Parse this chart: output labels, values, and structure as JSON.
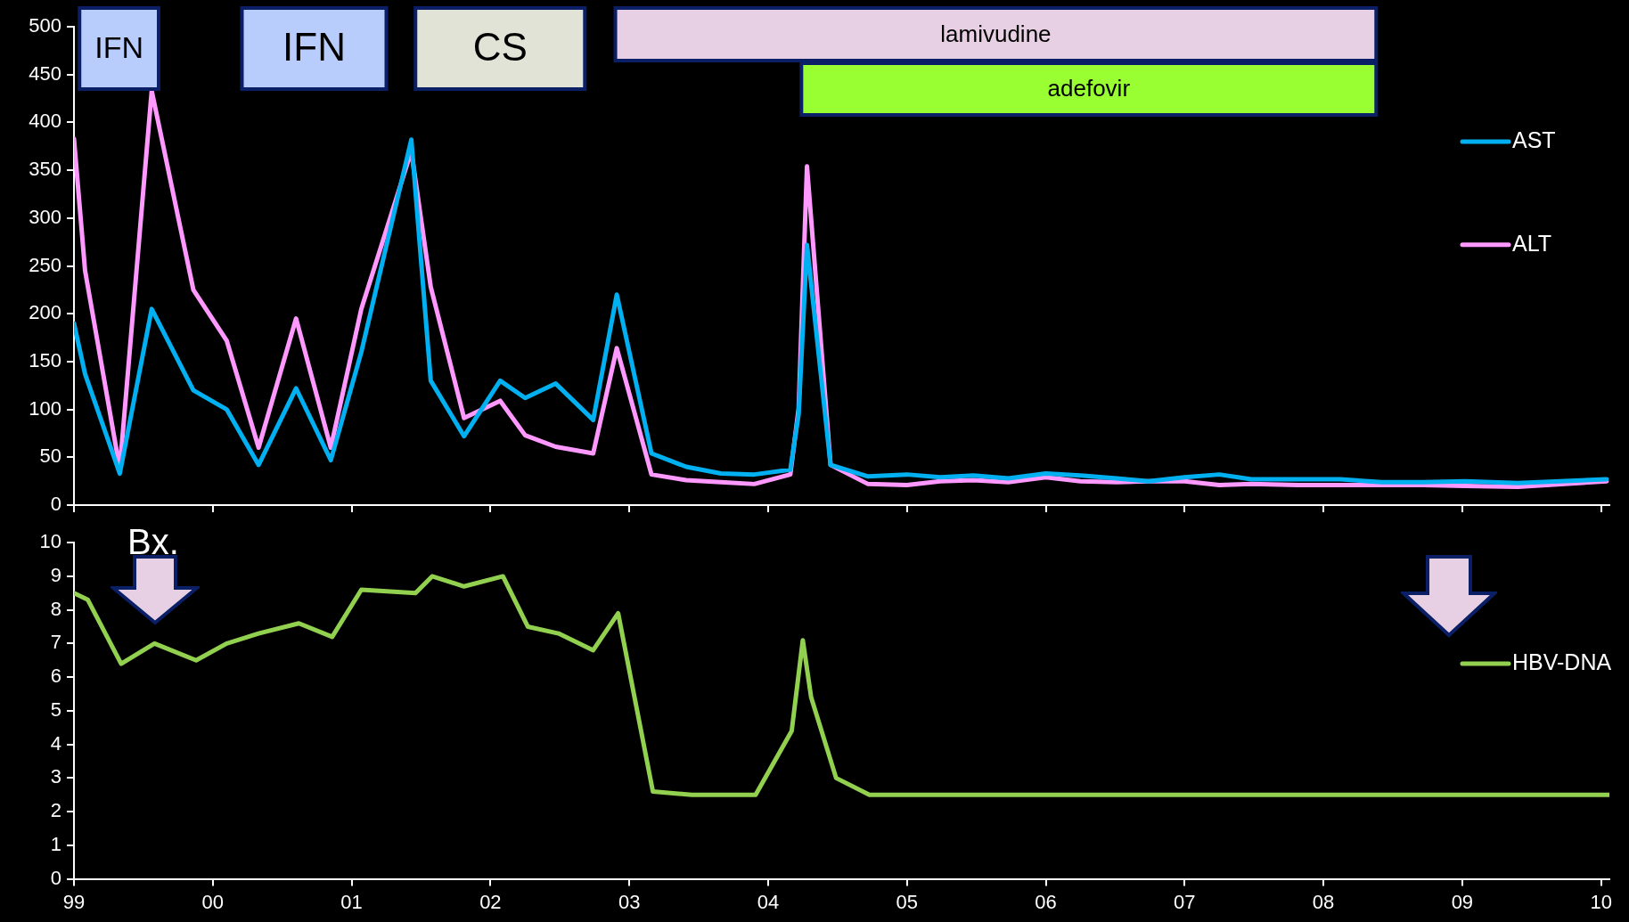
{
  "chart_data": [
    {
      "type": "line",
      "xlim": [
        1999,
        2010.06
      ],
      "ylim": [
        0,
        500
      ],
      "yticks": [
        0,
        50,
        100,
        150,
        200,
        250,
        300,
        350,
        400,
        450,
        500
      ],
      "xticks": [
        {
          "value": 1999,
          "label": null
        },
        {
          "value": 2000,
          "label": null
        },
        {
          "value": 2001,
          "label": null
        },
        {
          "value": 2002,
          "label": null
        },
        {
          "value": 2003,
          "label": null
        },
        {
          "value": 2004,
          "label": null
        },
        {
          "value": 2005,
          "label": null
        },
        {
          "value": 2006,
          "label": null
        },
        {
          "value": 2007,
          "label": null
        },
        {
          "value": 2008,
          "label": null
        },
        {
          "value": 2009,
          "label": null
        },
        {
          "value": 2010,
          "label": null
        }
      ],
      "tick_labels": "y",
      "legend": "right",
      "marker": "none",
      "line_style": "solid",
      "x": [
        1999.0,
        1999.08,
        1999.33,
        1999.56,
        1999.86,
        2000.1,
        2000.33,
        2000.6,
        2000.85,
        2001.07,
        2001.43,
        2001.57,
        2001.81,
        2002.07,
        2002.25,
        2002.47,
        2002.74,
        2002.91,
        2003.16,
        2003.41,
        2003.66,
        2003.9,
        2004.16,
        2004.22,
        2004.28,
        2004.45,
        2004.72,
        2005.0,
        2005.24,
        2005.48,
        2005.73,
        2006.0,
        2006.25,
        2006.51,
        2006.74,
        2007.0,
        2007.25,
        2007.48,
        2007.82,
        2008.12,
        2008.42,
        2008.72,
        2009.02,
        2009.4,
        2010.04
      ],
      "series": [
        {
          "name": "AST",
          "color": "#00b0f0",
          "values": [
            190,
            137,
            33,
            205,
            120,
            100,
            42,
            122,
            47,
            160,
            382,
            130,
            72,
            130,
            112,
            127,
            89,
            220,
            54,
            40,
            33,
            32,
            37,
            95,
            272,
            42,
            30,
            32,
            29,
            31,
            28,
            33,
            31,
            28,
            25,
            29,
            32,
            27,
            27,
            27,
            24,
            24,
            25,
            23,
            27
          ]
        },
        {
          "name": "ALT",
          "color": "#ff99ff",
          "values": [
            383,
            245,
            38,
            433,
            225,
            172,
            60,
            195,
            60,
            205,
            370,
            228,
            91,
            109,
            73,
            61,
            54,
            164,
            32,
            26,
            24,
            22,
            32,
            101,
            354,
            42,
            22,
            21,
            25,
            26,
            24,
            29,
            25,
            24,
            25,
            25,
            21,
            22,
            21,
            21,
            21,
            21,
            20,
            19,
            25
          ]
        }
      ],
      "bands": [
        {
          "axis": "x",
          "from": 1999.04,
          "to": 1999.61,
          "label": "IFN",
          "color": "#b8cdfc"
        },
        {
          "axis": "x",
          "from": 2000.21,
          "to": 2001.25,
          "label": "IFN",
          "color": "#b8cdfc"
        },
        {
          "axis": "x",
          "from": 2001.46,
          "to": 2002.68,
          "label": "CS",
          "color": "#e0e3d5"
        },
        {
          "axis": "x",
          "from": 2002.9,
          "to": 2008.38,
          "label": "lamivudine",
          "color": "#e8d0e4"
        },
        {
          "axis": "x",
          "from": 2004.24,
          "to": 2008.38,
          "label": "adefovir",
          "color": "#99ff33"
        }
      ]
    },
    {
      "type": "line",
      "xlim": [
        1999,
        2010.06
      ],
      "ylim": [
        0,
        10
      ],
      "yticks": [
        0,
        1,
        2,
        3,
        4,
        5,
        6,
        7,
        8,
        9,
        10
      ],
      "xticks": [
        {
          "value": 1999,
          "label": "99"
        },
        {
          "value": 2000,
          "label": "00"
        },
        {
          "value": 2001,
          "label": "01"
        },
        {
          "value": 2002,
          "label": "02"
        },
        {
          "value": 2003,
          "label": "03"
        },
        {
          "value": 2004,
          "label": "04"
        },
        {
          "value": 2005,
          "label": "05"
        },
        {
          "value": 2006,
          "label": "06"
        },
        {
          "value": 2007,
          "label": "07"
        },
        {
          "value": 2008,
          "label": "08"
        },
        {
          "value": 2009,
          "label": "09"
        },
        {
          "value": 2010,
          "label": "10"
        }
      ],
      "legend": "right",
      "marker": "none",
      "line_style": "solid",
      "annotations": [
        "Bx."
      ],
      "x": [
        1999.0,
        1999.1,
        1999.34,
        1999.58,
        1999.88,
        2000.1,
        2000.33,
        2000.62,
        2000.86,
        2001.07,
        2001.46,
        2001.58,
        2001.81,
        2002.09,
        2002.27,
        2002.49,
        2002.74,
        2002.92,
        2003.17,
        2003.45,
        2003.91,
        2004.17,
        2004.25,
        2004.31,
        2004.49,
        2004.73,
        2010.06
      ],
      "series": [
        {
          "name": "HBV-DNA",
          "color": "#92d050",
          "values": [
            8.5,
            8.3,
            6.4,
            7.0,
            6.5,
            7.0,
            7.3,
            7.6,
            7.2,
            8.6,
            8.5,
            9.0,
            8.7,
            9.0,
            7.5,
            7.3,
            6.8,
            7.9,
            2.6,
            2.5,
            2.5,
            4.4,
            7.1,
            5.4,
            3.0,
            2.5,
            2.5
          ]
        }
      ]
    }
  ]
}
